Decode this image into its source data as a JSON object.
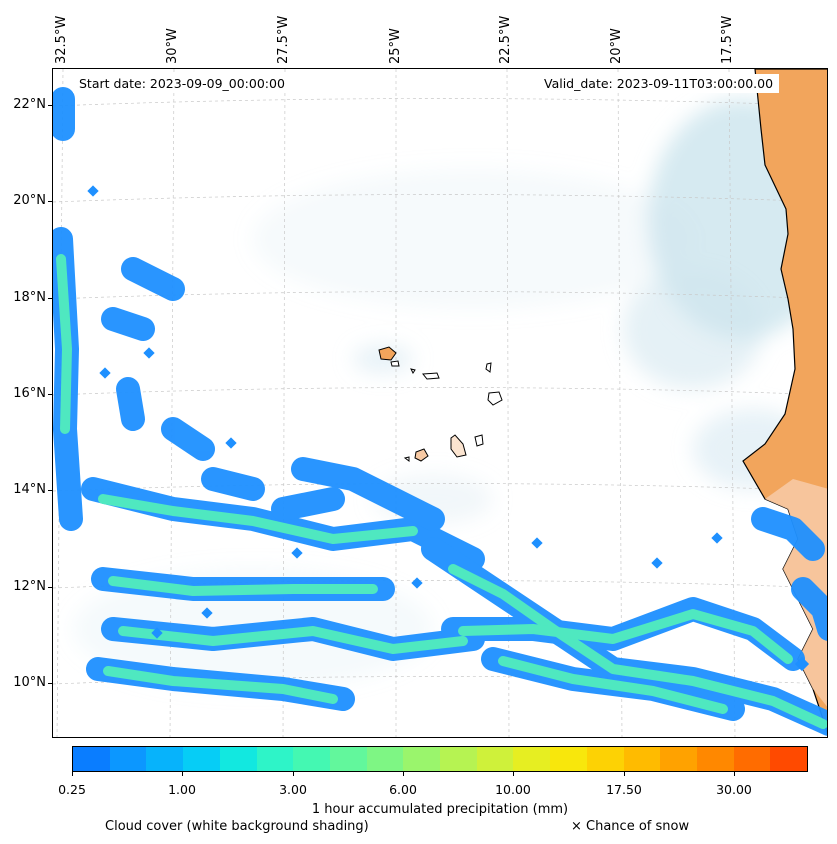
{
  "map": {
    "start_label": "Start date: 2023-09-09_00:00:00",
    "valid_label": "Valid_date: 2023-09-11T03:00:00.00",
    "longitude_labels": [
      "32.5°W",
      "30°W",
      "27.5°W",
      "25°W",
      "22.5°W",
      "20°W",
      "17.5°W"
    ],
    "latitude_labels": [
      "22°N",
      "20°N",
      "18°N",
      "16°N",
      "14°N",
      "12°N",
      "10°N"
    ],
    "land_color": "#f2a55c",
    "cloud_color": "#cfe6ef",
    "precip_edge_color": "#1e90ff",
    "precip_core_color": "#4fe8c0"
  },
  "colorbar": {
    "colors": [
      "#0a7dff",
      "#0c97ff",
      "#07b3fb",
      "#06cdf6",
      "#12e8e0",
      "#2ef4c8",
      "#44f8b2",
      "#62f79c",
      "#7ef684",
      "#9af56c",
      "#b6f352",
      "#cff13a",
      "#e6ee22",
      "#f8e70c",
      "#fdd204",
      "#ffbb00",
      "#ffa200",
      "#ff8800",
      "#ff6c00",
      "#ff4a00"
    ],
    "tick_labels": [
      "0.25",
      "1.00",
      "3.00",
      "6.00",
      "10.00",
      "17.50",
      "30.00"
    ],
    "label": "1 hour accumulated precipitation (mm)"
  },
  "notes": {
    "cloud": "Cloud cover (white background shading)",
    "snow": "× Chance of snow"
  }
}
